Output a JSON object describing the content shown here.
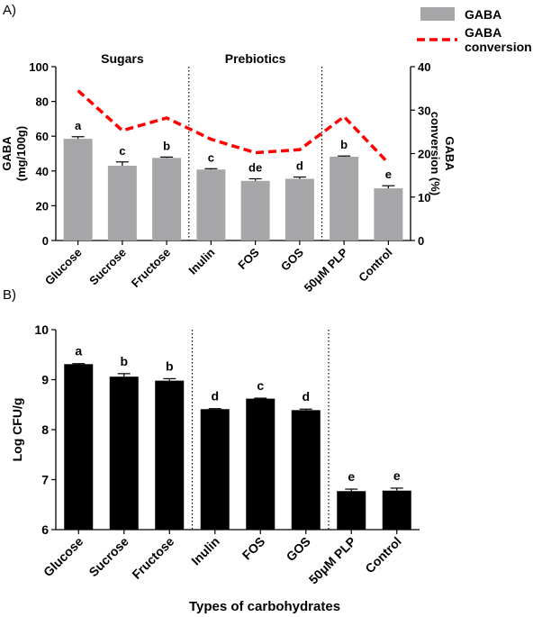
{
  "colors": {
    "gaba_bar": "#a6a6a8",
    "conversion_line": "#ff0000",
    "bar_b": "#000000",
    "axis": "#000000"
  },
  "chart_data": [
    {
      "panel_label": "A)",
      "type": "bar",
      "categories": [
        "Glucose",
        "Sucrose",
        "Fructose",
        "Inulin",
        "FOS",
        "GOS",
        "50μM PLP",
        "Control"
      ],
      "groups": [
        {
          "label": "Sugars",
          "categories": [
            "Glucose",
            "Sucrose",
            "Fructose"
          ]
        },
        {
          "label": "Prebiotics",
          "categories": [
            "Inulin",
            "FOS",
            "GOS"
          ]
        }
      ],
      "dividers_after": [
        "Fructose",
        "GOS"
      ],
      "series": [
        {
          "name": "GABA",
          "type": "bar",
          "axis": "left",
          "values": [
            58.5,
            43.0,
            47.5,
            40.8,
            34.3,
            35.5,
            48.2,
            30.0
          ],
          "errors": [
            1.2,
            2.2,
            0.5,
            0.5,
            1.2,
            1.0,
            0.4,
            1.5
          ],
          "letters": [
            "a",
            "c",
            "b",
            "c",
            "de",
            "d",
            "b",
            "e"
          ]
        },
        {
          "name": "GABA\nconversion",
          "type": "line",
          "style": "dashed",
          "axis": "right",
          "values": [
            34.5,
            25.3,
            28.2,
            23.3,
            20.2,
            20.9,
            28.5,
            17.8
          ]
        }
      ],
      "ylabel_left": "GABA\n(mg/100g)",
      "ylabel_right": "GABA\nconversion (%)",
      "ylim_left": [
        0,
        100
      ],
      "yticks_left": [
        "0",
        "20",
        "40",
        "60",
        "80",
        "100"
      ],
      "ylim_right": [
        0,
        40
      ],
      "yticks_right": [
        "0",
        "10",
        "20",
        "30",
        "40"
      ],
      "legend_placement": "top-right",
      "grid": false
    },
    {
      "panel_label": "B)",
      "type": "bar",
      "categories": [
        "Glucose",
        "Sucrose",
        "Fructose",
        "Inulin",
        "FOS",
        "GOS",
        "50μM PLP",
        "Control"
      ],
      "dividers_after": [
        "Fructose",
        "GOS"
      ],
      "series": [
        {
          "name": "",
          "values": [
            9.31,
            9.06,
            8.98,
            8.41,
            8.62,
            8.39,
            6.77,
            6.78
          ],
          "errors": [
            0.01,
            0.06,
            0.04,
            0.01,
            0.01,
            0.02,
            0.04,
            0.05
          ],
          "letters": [
            "a",
            "b",
            "b",
            "d",
            "c",
            "d",
            "e",
            "e"
          ]
        }
      ],
      "xlabel": "Types of carbohydrates",
      "ylabel": "Log CFU/g",
      "ylim": [
        6,
        10
      ],
      "yticks": [
        "6",
        "7",
        "8",
        "9",
        "10"
      ],
      "grid": false
    }
  ]
}
